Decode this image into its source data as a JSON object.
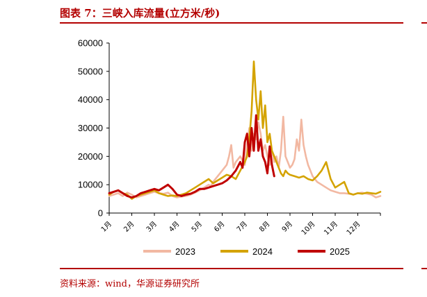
{
  "header": {
    "title": "图表 7：三峡入库流量(立方米/秒)"
  },
  "footer": {
    "source": "资料来源：wind，华源证券研究所"
  },
  "colors": {
    "accent": "#b30000",
    "s2023": "#f2b8a2",
    "s2024": "#d4a300",
    "s2025": "#c00000"
  },
  "chart_data": {
    "type": "line",
    "title": "",
    "xlabel": "",
    "ylabel": "",
    "ylim": [
      0,
      60000
    ],
    "yticks": [
      "0",
      "10000",
      "20000",
      "30000",
      "40000",
      "50000",
      "60000"
    ],
    "x_domain": [
      1,
      13
    ],
    "xticks": [
      "1月",
      "2月",
      "3月",
      "4月",
      "5月",
      "6月",
      "7月",
      "8月",
      "9月",
      "10月",
      "11月",
      "12月"
    ],
    "legend_position": "bottom",
    "series": [
      {
        "name": "2023",
        "color": "#f2b8a2",
        "x": [
          1,
          1.2,
          1.4,
          1.6,
          1.8,
          2,
          2.2,
          2.4,
          2.6,
          2.8,
          3,
          3.2,
          3.4,
          3.6,
          3.8,
          4,
          4.2,
          4.4,
          4.6,
          4.8,
          5,
          5.2,
          5.4,
          5.5,
          5.6,
          5.8,
          6,
          6.2,
          6.3,
          6.4,
          6.5,
          6.6,
          6.8,
          7,
          7.1,
          7.2,
          7.3,
          7.4,
          7.5,
          7.6,
          7.7,
          7.8,
          7.9,
          8,
          8.1,
          8.2,
          8.3,
          8.4,
          8.5,
          8.6,
          8.7,
          8.8,
          8.9,
          9,
          9.1,
          9.2,
          9.3,
          9.4,
          9.5,
          9.6,
          9.7,
          9.8,
          9.9,
          10,
          10.2,
          10.4,
          10.6,
          10.8,
          11,
          11.2,
          11.4,
          11.6,
          11.8,
          12,
          12.2,
          12.4,
          12.6,
          12.8,
          13
        ],
        "values": [
          6000,
          6500,
          7000,
          6000,
          7200,
          6500,
          5500,
          6000,
          6500,
          7000,
          7500,
          7000,
          6800,
          7200,
          6000,
          5500,
          5800,
          6000,
          6500,
          7200,
          8000,
          9000,
          10000,
          9500,
          11000,
          13000,
          15000,
          17000,
          20000,
          24000,
          16000,
          18000,
          20000,
          17000,
          24000,
          30000,
          22000,
          28000,
          26000,
          32000,
          28000,
          22000,
          24000,
          20000,
          17000,
          22000,
          18000,
          20000,
          16000,
          22000,
          34000,
          20000,
          18000,
          16000,
          17000,
          19000,
          26000,
          22000,
          33000,
          24000,
          20000,
          17000,
          15000,
          13000,
          11000,
          10000,
          9000,
          8000,
          7500,
          7000,
          7000,
          6800,
          6500,
          7000,
          7200,
          6800,
          6500,
          5500,
          6000
        ]
      },
      {
        "name": "2024",
        "color": "#d4a300",
        "x": [
          1,
          1.2,
          1.4,
          1.6,
          1.8,
          2,
          2.2,
          2.4,
          2.6,
          2.8,
          3,
          3.2,
          3.4,
          3.6,
          3.8,
          4,
          4.2,
          4.4,
          4.6,
          4.8,
          5,
          5.2,
          5.4,
          5.6,
          5.8,
          6,
          6.2,
          6.4,
          6.6,
          6.8,
          7,
          7.1,
          7.2,
          7.3,
          7.4,
          7.5,
          7.6,
          7.7,
          7.8,
          7.9,
          8,
          8.1,
          8.2,
          8.3,
          8.4,
          8.5,
          8.6,
          8.7,
          8.8,
          8.9,
          9,
          9.2,
          9.4,
          9.6,
          9.8,
          10,
          10.2,
          10.4,
          10.6,
          10.8,
          11,
          11.2,
          11.4,
          11.6,
          11.8,
          12,
          12.2,
          12.4,
          12.6,
          12.8,
          13
        ],
        "values": [
          6500,
          7500,
          8000,
          7000,
          6500,
          5000,
          6000,
          6500,
          7000,
          7500,
          8000,
          7000,
          6500,
          6000,
          6200,
          6000,
          6500,
          7000,
          8000,
          9000,
          10000,
          11000,
          12000,
          10500,
          11500,
          12500,
          13500,
          13000,
          12000,
          15000,
          18000,
          20000,
          26000,
          36000,
          53500,
          40000,
          33000,
          43000,
          30000,
          38000,
          25000,
          28000,
          22000,
          20000,
          18000,
          16000,
          14000,
          13000,
          15000,
          14000,
          13500,
          13000,
          12500,
          13000,
          12000,
          11500,
          13000,
          15000,
          18000,
          12000,
          9000,
          10000,
          11000,
          7000,
          6500,
          7000,
          6800,
          7200,
          7000,
          6800,
          7500
        ]
      },
      {
        "name": "2025",
        "color": "#c00000",
        "x": [
          1,
          1.2,
          1.4,
          1.6,
          1.8,
          2,
          2.2,
          2.4,
          2.6,
          2.8,
          3,
          3.2,
          3.4,
          3.6,
          3.8,
          4,
          4.2,
          4.4,
          4.6,
          4.8,
          5,
          5.2,
          5.4,
          5.6,
          5.8,
          6,
          6.2,
          6.4,
          6.6,
          6.8,
          6.9,
          7,
          7.1,
          7.2,
          7.3,
          7.4,
          7.5,
          7.6,
          7.7,
          7.8,
          7.9,
          8,
          8.1,
          8.2,
          8.3
        ],
        "values": [
          7000,
          7500,
          8000,
          7000,
          6000,
          5500,
          6000,
          7000,
          7500,
          8000,
          8500,
          8000,
          9000,
          10000,
          8500,
          6500,
          6000,
          6500,
          6800,
          7500,
          8500,
          8500,
          9000,
          9500,
          10000,
          10500,
          11500,
          13000,
          15000,
          18000,
          16000,
          25000,
          28000,
          20000,
          30000,
          22000,
          34500,
          22000,
          26000,
          20000,
          18000,
          14000,
          23500,
          17000,
          13000
        ]
      }
    ]
  }
}
